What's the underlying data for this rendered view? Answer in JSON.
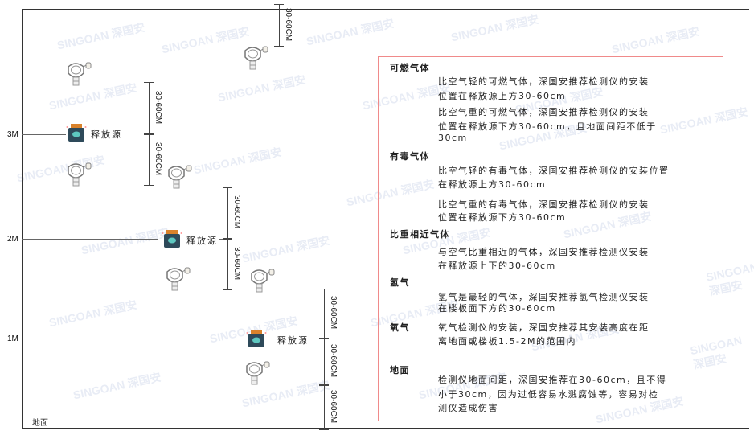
{
  "watermark": "SINGOAN 深国安",
  "levels": [
    "3M",
    "2M",
    "1M"
  ],
  "ground_label": "地面",
  "dimension_label": "30-60CM",
  "source_label": "释放源",
  "colors": {
    "box_border": "#f08a8a",
    "source_body": "#2e4a5a",
    "source_cap": "#d9822b",
    "detector": "#888888"
  },
  "notes": [
    {
      "heading": "可燃气体",
      "paragraphs": [
        [
          "比空气轻的可燃气体，深国安推荐检测仪的安装",
          "位置在释放源上方30-60cm"
        ],
        [
          "比空气重的可燃气体，深国安推荐检测仪的安装",
          "位置在释放源下方30-60cm，且地面间距不低于",
          "30cm"
        ]
      ]
    },
    {
      "heading": "有毒气体",
      "paragraphs": [
        [
          "比空气轻的有毒气体，深国安推荐检测仪的安装位置",
          "在释放源上方30-60cm"
        ],
        [
          "比空气重的有毒气体，深国安推荐检测仪的安装",
          "位置在释放源下方30-60cm"
        ]
      ]
    },
    {
      "heading": "比重相近气体",
      "paragraphs": [
        [
          "与空气比重相近的气体，深国安推荐检测仪安装",
          "在释放源上下的30-60cm"
        ]
      ]
    },
    {
      "heading": "氢气",
      "paragraphs": [
        [
          "氢气是最轻的气体，深国安推荐氢气检测仪安装",
          "在楼板面下方的30-60cm"
        ]
      ]
    },
    {
      "heading": "氧气",
      "paragraphs": [
        [
          "氧气检测仪的安装，深国安推荐其安装高度在距",
          "离地面或楼板1.5-2M的范围内"
        ]
      ]
    },
    {
      "heading": "地面",
      "paragraphs": [
        [
          "检测仪地面间距，深国安推荐在30-60cm，且不得",
          "小于30cm，因为过低容易水溅腐蚀等，容易对检",
          "测仪造成伤害"
        ]
      ]
    }
  ]
}
